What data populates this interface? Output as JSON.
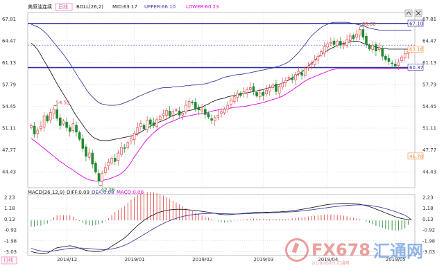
{
  "header": {
    "instrument": "美原油连续",
    "period": "日线",
    "indicator": "BOLL(26,2)",
    "mid": "MID:63.17",
    "upper": "UPPER:66.10",
    "lower": "LOWER:60.23"
  },
  "macd_header": {
    "label": "MACD(26,12,9)",
    "diff": "DIFF:0.09",
    "dea": "DEA:0.08",
    "macd": "MACD:0.00"
  },
  "left_bottom_label": "日线",
  "watermark": {
    "brand": "FX678",
    "cn": "汇通网",
    "site": "2019/06/03 汇通网"
  },
  "colors": {
    "up": "#e24a4a",
    "down": "#1f8a2e",
    "mid": "#222222",
    "upper": "#3d3da8",
    "lower": "#e000e0",
    "price_tag": "#f08c3c",
    "hline": "#3030a0"
  },
  "chart_data": [
    {
      "type": "candlestick",
      "y_ticks": [
        67.81,
        64.47,
        61.13,
        57.79,
        54.45,
        51.11,
        47.77,
        44.43
      ],
      "ylim": [
        42.0,
        68.8
      ],
      "x_tick_labels": [
        "2018/12",
        "2019/01",
        "2019/02",
        "2019/03",
        "2019/04",
        "2019/05"
      ],
      "x_tick_index": [
        11,
        32,
        53,
        72,
        92,
        113
      ],
      "annotations": [
        {
          "text": "54.55",
          "index": 7,
          "value": 54.55,
          "kind": "high"
        },
        {
          "text": "42.36",
          "index": 21,
          "value": 42.36,
          "kind": "low"
        },
        {
          "text": "66.60",
          "index": 102,
          "value": 66.6,
          "kind": "high"
        }
      ],
      "right_labels": [
        {
          "text": "67.10",
          "value": 67.1,
          "style": "upper"
        },
        {
          "text": "63.16",
          "value": 63.16,
          "style": "price"
        },
        {
          "text": "60.37",
          "value": 60.37,
          "style": "lower"
        },
        {
          "text": "46.78",
          "value": 46.78,
          "style": "price"
        }
      ],
      "h_lines": [
        67.1,
        60.37
      ],
      "dotted_line": 63.8,
      "series": [
        {
          "name": "MID",
          "values": [
            64.1,
            63.7,
            63.1,
            62.3,
            61.4,
            60.6,
            59.7,
            58.8,
            57.9,
            57.1,
            56.3,
            55.5,
            54.7,
            53.8,
            53.0,
            52.3,
            51.6,
            50.9,
            50.3,
            49.8,
            49.5,
            49.3,
            49.2,
            49.2,
            49.2,
            49.3,
            49.4,
            49.5,
            49.6,
            49.7,
            49.8,
            49.9,
            50.0,
            50.2,
            50.5,
            50.8,
            51.1,
            51.4,
            51.7,
            51.9,
            52.1,
            52.3,
            52.5,
            52.8,
            53.0,
            53.2,
            53.4,
            53.6,
            53.7,
            53.8,
            53.9,
            54.0,
            54.2,
            54.3,
            54.6,
            54.8,
            55.1,
            55.3,
            55.5,
            55.6,
            55.7,
            55.9,
            56.0,
            56.1,
            56.2,
            56.3,
            56.4,
            56.5,
            56.6,
            56.7,
            56.8,
            56.9,
            57.0,
            57.2,
            57.3,
            57.5,
            57.7,
            57.8,
            58.0,
            58.2,
            58.5,
            58.8,
            59.1,
            59.4,
            59.7,
            60.1,
            60.6,
            61.0,
            61.5,
            61.9,
            62.4,
            62.7,
            63.0,
            63.3,
            63.5,
            63.8,
            64.0,
            64.1,
            64.2,
            64.3,
            64.4,
            64.4,
            64.3,
            64.1,
            63.9,
            63.8,
            63.6,
            63.5,
            63.4,
            63.3,
            63.3,
            63.2,
            63.2,
            63.2,
            63.2,
            63.2,
            63.2,
            63.17,
            63.17
          ]
        },
        {
          "name": "UPPER",
          "values": [
            67.0,
            66.8,
            66.6,
            66.3,
            65.9,
            65.4,
            64.8,
            64.2,
            63.6,
            63.0,
            62.4,
            61.7,
            61.0,
            60.2,
            59.4,
            58.6,
            57.9,
            57.1,
            56.4,
            55.9,
            55.4,
            55.0,
            54.8,
            54.7,
            54.6,
            54.6,
            54.6,
            54.7,
            54.8,
            55.0,
            55.2,
            55.4,
            55.6,
            55.9,
            56.1,
            56.3,
            56.5,
            56.7,
            56.9,
            57.1,
            57.2,
            57.3,
            57.3,
            57.3,
            57.4,
            57.4,
            57.5,
            57.5,
            57.6,
            57.6,
            57.7,
            57.7,
            57.8,
            57.8,
            57.9,
            58.0,
            58.2,
            58.3,
            58.5,
            58.7,
            58.9,
            59.0,
            59.1,
            59.2,
            59.3,
            59.3,
            59.4,
            59.5,
            59.6,
            59.7,
            59.8,
            59.9,
            60.0,
            60.1,
            60.2,
            60.3,
            60.5,
            60.6,
            60.8,
            61.0,
            61.3,
            61.7,
            62.2,
            62.7,
            63.3,
            63.9,
            64.6,
            65.2,
            65.7,
            66.1,
            66.5,
            66.8,
            67.0,
            67.2,
            67.3,
            67.3,
            67.3,
            67.3,
            67.3,
            67.2,
            67.1,
            67.0,
            66.9,
            66.8,
            66.6,
            66.4,
            66.3,
            66.2,
            66.1,
            66.1,
            66.1,
            66.1,
            66.1,
            66.1,
            66.1,
            66.1,
            66.1,
            66.1,
            66.1
          ]
        },
        {
          "name": "LOWER",
          "values": [
            49.5,
            49.2,
            48.8,
            48.4,
            48.0,
            47.6,
            47.2,
            46.8,
            46.4,
            46.0,
            45.7,
            45.3,
            45.0,
            44.7,
            44.3,
            44.0,
            43.7,
            43.4,
            43.2,
            43.1,
            43.0,
            43.0,
            43.1,
            43.2,
            43.3,
            43.5,
            43.7,
            43.9,
            44.2,
            44.6,
            45.2,
            45.9,
            46.7,
            47.4,
            48.1,
            48.8,
            49.4,
            49.9,
            50.4,
            50.8,
            51.2,
            51.5,
            51.8,
            52.0,
            52.2,
            52.4,
            52.6,
            52.8,
            52.9,
            53.0,
            53.1,
            53.2,
            53.3,
            53.3,
            53.4,
            53.5,
            53.7,
            53.8,
            53.9,
            54.0,
            54.0,
            54.1,
            54.2,
            54.3,
            54.3,
            54.4,
            54.4,
            54.5,
            54.6,
            54.7,
            54.8,
            54.9,
            55.0,
            55.2,
            55.3,
            55.5,
            55.6,
            55.8,
            56.0,
            56.3,
            56.6,
            56.9,
            57.3,
            57.6,
            58.0,
            58.3,
            58.6,
            58.8,
            59.0,
            59.2,
            59.4,
            59.6,
            59.8,
            60.0,
            60.1,
            60.2,
            60.2,
            60.2,
            60.2,
            60.2,
            60.2,
            60.2,
            60.2,
            60.2,
            60.2,
            60.2,
            60.2,
            60.2,
            60.23,
            60.23,
            60.23,
            60.23,
            60.23,
            60.23,
            60.23,
            60.23,
            60.23,
            60.23,
            60.23
          ]
        },
        {
          "name": "close",
          "values": [
            51.5,
            50.2,
            50.8,
            51.4,
            53.0,
            52.2,
            53.5,
            54.0,
            52.6,
            51.5,
            52.2,
            51.2,
            50.6,
            51.8,
            50.5,
            49.4,
            48.0,
            46.8,
            47.3,
            45.6,
            44.4,
            43.0,
            44.2,
            45.1,
            45.9,
            46.5,
            46.0,
            47.3,
            48.2,
            48.0,
            48.9,
            49.5,
            50.3,
            51.2,
            51.8,
            51.0,
            52.3,
            51.7,
            51.5,
            52.4,
            52.9,
            53.3,
            53.8,
            53.0,
            53.6,
            53.9,
            53.1,
            53.4,
            54.6,
            55.2,
            55.0,
            54.1,
            53.9,
            54.0,
            53.2,
            52.8,
            52.3,
            52.7,
            53.1,
            53.6,
            54.0,
            54.6,
            55.4,
            55.9,
            56.4,
            56.1,
            56.7,
            57.0,
            57.3,
            56.8,
            56.0,
            56.5,
            56.1,
            56.9,
            57.3,
            57.7,
            56.7,
            57.5,
            58.0,
            58.4,
            58.9,
            58.5,
            59.3,
            59.8,
            59.2,
            60.3,
            60.6,
            61.0,
            61.5,
            62.1,
            62.8,
            63.6,
            64.0,
            64.2,
            63.9,
            64.4,
            63.8,
            64.0,
            64.6,
            65.2,
            64.8,
            65.5,
            66.2,
            65.0,
            64.0,
            63.2,
            63.8,
            62.9,
            63.4,
            62.1,
            61.6,
            61.3,
            61.0,
            60.6,
            61.2,
            62.0,
            62.5,
            62.8,
            63.16
          ]
        }
      ]
    },
    {
      "type": "bar+line",
      "y_ticks": [
        2.23,
        1.18,
        0.13,
        -0.92,
        -1.98,
        -3.03
      ],
      "ylim": [
        -3.4,
        2.5
      ],
      "series": [
        {
          "name": "DIFF",
          "values": [
            -3.0,
            -3.1,
            -3.15,
            -3.2,
            -3.2,
            -3.15,
            -3.0,
            -2.8,
            -2.65,
            -2.6,
            -2.55,
            -2.5,
            -2.45,
            -2.5,
            -2.6,
            -2.7,
            -2.8,
            -2.9,
            -2.95,
            -3.0,
            -3.0,
            -3.0,
            -2.95,
            -2.85,
            -2.7,
            -2.5,
            -2.3,
            -2.1,
            -1.9,
            -1.7,
            -1.4,
            -1.1,
            -0.8,
            -0.5,
            -0.25,
            0.0,
            0.2,
            0.4,
            0.55,
            0.7,
            0.82,
            0.9,
            0.97,
            1.02,
            1.05,
            1.07,
            1.08,
            1.07,
            1.05,
            1.02,
            1.0,
            0.96,
            0.92,
            0.88,
            0.84,
            0.8,
            0.74,
            0.68,
            0.62,
            0.58,
            0.55,
            0.55,
            0.57,
            0.6,
            0.62,
            0.65,
            0.68,
            0.71,
            0.74,
            0.77,
            0.78,
            0.78,
            0.78,
            0.79,
            0.8,
            0.81,
            0.82,
            0.83,
            0.85,
            0.87,
            0.9,
            0.94,
            0.98,
            1.02,
            1.07,
            1.12,
            1.18,
            1.24,
            1.3,
            1.36,
            1.42,
            1.48,
            1.53,
            1.57,
            1.6,
            1.62,
            1.64,
            1.65,
            1.65,
            1.64,
            1.62,
            1.6,
            1.56,
            1.5,
            1.42,
            1.33,
            1.22,
            1.1,
            0.98,
            0.85,
            0.72,
            0.6,
            0.48,
            0.36,
            0.26,
            0.18,
            0.12,
            0.09,
            0.09
          ]
        },
        {
          "name": "DEA",
          "values": [
            -2.7,
            -2.8,
            -2.9,
            -2.95,
            -3.0,
            -3.0,
            -2.98,
            -2.95,
            -2.9,
            -2.85,
            -2.8,
            -2.75,
            -2.7,
            -2.68,
            -2.67,
            -2.67,
            -2.68,
            -2.7,
            -2.72,
            -2.75,
            -2.78,
            -2.8,
            -2.82,
            -2.82,
            -2.8,
            -2.76,
            -2.7,
            -2.62,
            -2.52,
            -2.4,
            -2.26,
            -2.1,
            -1.92,
            -1.74,
            -1.55,
            -1.36,
            -1.17,
            -0.98,
            -0.8,
            -0.62,
            -0.45,
            -0.3,
            -0.15,
            -0.02,
            0.1,
            0.2,
            0.3,
            0.38,
            0.45,
            0.5,
            0.55,
            0.59,
            0.62,
            0.64,
            0.66,
            0.67,
            0.68,
            0.68,
            0.67,
            0.66,
            0.65,
            0.64,
            0.63,
            0.63,
            0.63,
            0.63,
            0.64,
            0.65,
            0.66,
            0.68,
            0.69,
            0.7,
            0.71,
            0.72,
            0.73,
            0.74,
            0.75,
            0.77,
            0.78,
            0.8,
            0.82,
            0.84,
            0.86,
            0.89,
            0.92,
            0.95,
            0.99,
            1.03,
            1.07,
            1.11,
            1.15,
            1.2,
            1.24,
            1.28,
            1.32,
            1.36,
            1.39,
            1.42,
            1.45,
            1.47,
            1.49,
            1.5,
            1.5,
            1.5,
            1.48,
            1.45,
            1.41,
            1.36,
            1.3,
            1.22,
            1.14,
            1.05,
            0.95,
            0.85,
            0.74,
            0.63,
            0.5,
            0.3,
            0.08
          ]
        }
      ]
    }
  ]
}
